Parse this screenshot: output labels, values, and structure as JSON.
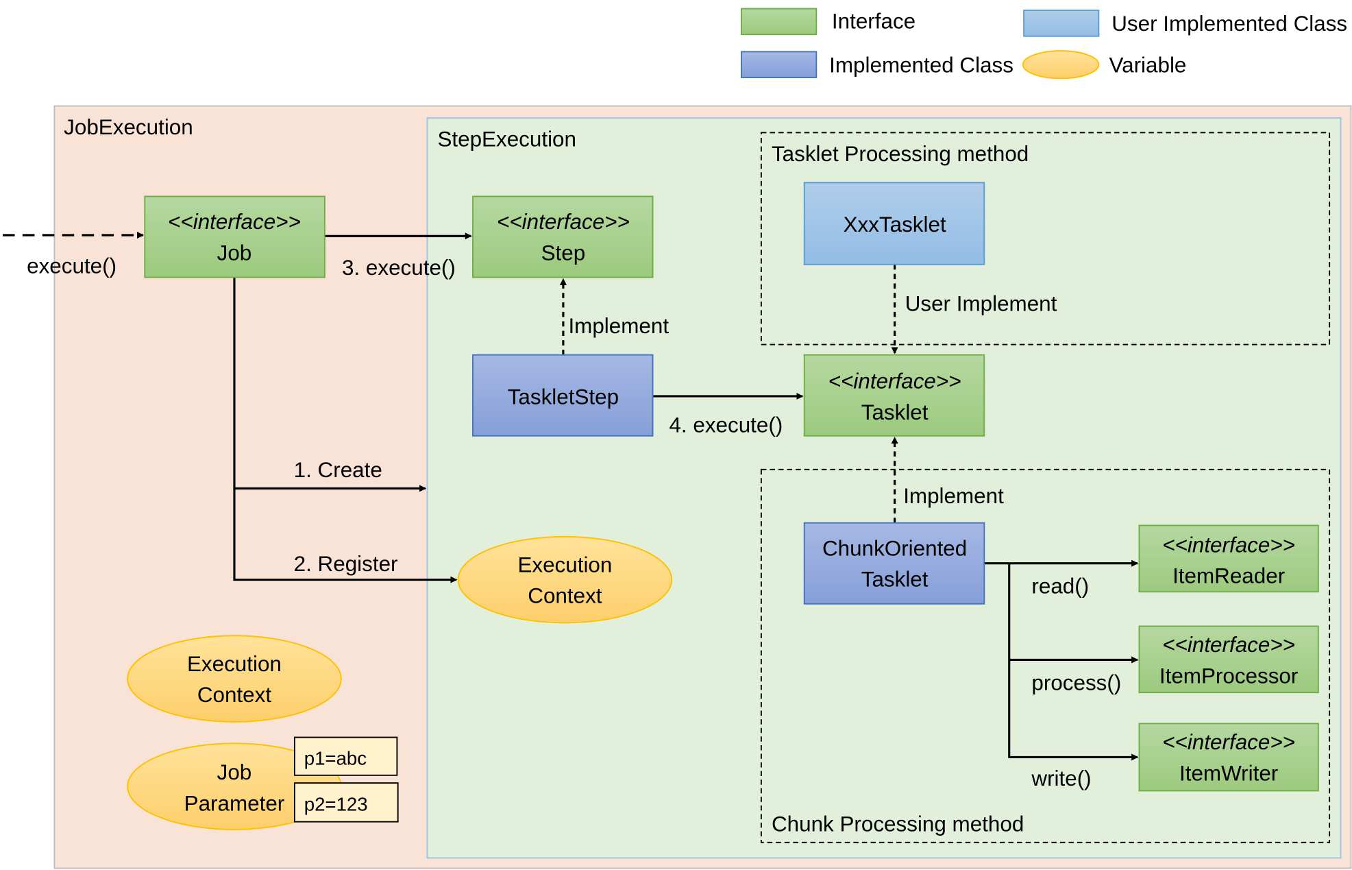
{
  "legend": {
    "interface": "Interface",
    "user_implemented_class": "User Implemented Class",
    "implemented_class": "Implemented Class",
    "variable": "Variable"
  },
  "colors": {
    "interface": "#a9d18e",
    "implemented_class": "#8faadc",
    "user_implemented_class": "#9dc3e6",
    "variable": "#ffd966",
    "job_execution_bg": "#f9e3d6",
    "step_execution_bg": "#e2efda"
  },
  "groups": {
    "job_execution": "JobExecution",
    "step_execution": "StepExecution",
    "tasklet_method": "Tasklet Processing method",
    "chunk_method": "Chunk Processing method"
  },
  "stereotype": "<<interface>>",
  "nodes": {
    "job": "Job",
    "step": "Step",
    "tasklet": "Tasklet",
    "tasklet_step": "TaskletStep",
    "xxx_tasklet": "XxxTasklet",
    "chunk_oriented_1": "ChunkOriented",
    "chunk_oriented_2": "Tasklet",
    "item_reader": "ItemReader",
    "item_processor": "ItemProcessor",
    "item_writer": "ItemWriter",
    "step_context_1": "Execution",
    "step_context_2": "Context",
    "job_context_1": "Execution",
    "job_context_2": "Context",
    "job_param_1": "Job",
    "job_param_2": "Parameter",
    "p1": "p1=abc",
    "p2": "p2=123"
  },
  "edges": {
    "external_execute": "execute()",
    "execute_step": "3. execute()",
    "create": "1. Create",
    "register": "2. Register",
    "implement_step": "Implement",
    "execute_tasklet": "4. execute()",
    "user_implement": "User Implement",
    "implement_tasklet": "Implement",
    "read": "read()",
    "process": "process()",
    "write": "write()"
  }
}
